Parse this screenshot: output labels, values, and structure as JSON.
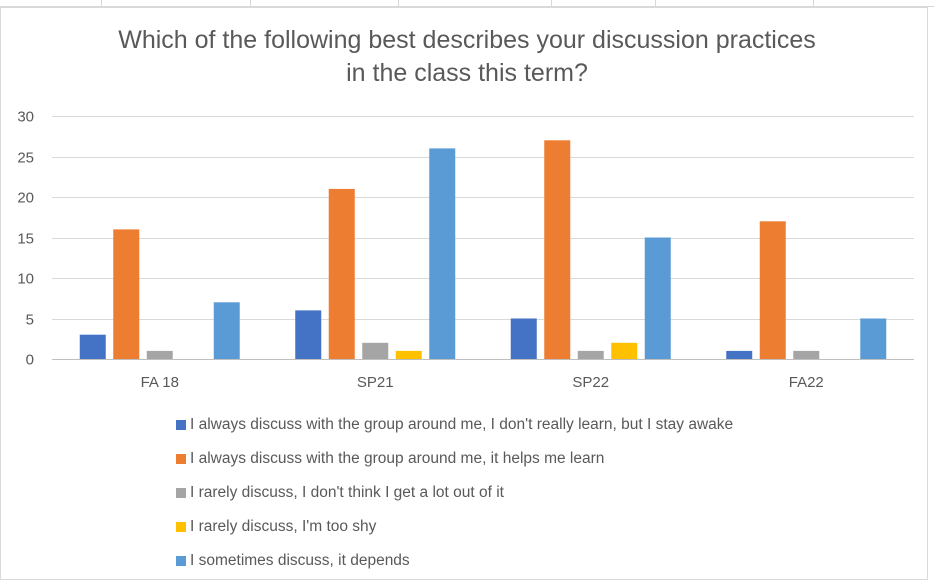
{
  "chart_data": {
    "type": "bar",
    "title_lines": [
      "Which of the following best describes your discussion practices",
      "in the class this term?"
    ],
    "categories": [
      "FA 18",
      "SP21",
      "SP22",
      "FA22"
    ],
    "ylim": [
      0,
      30
    ],
    "yticks": [
      0,
      5,
      10,
      15,
      20,
      25,
      30
    ],
    "grid": true,
    "legend_position": "bottom",
    "series": [
      {
        "name": "I always discuss with the group around me, I don't really learn, but I stay awake",
        "color": "#4472C4",
        "values": [
          3,
          6,
          5,
          1
        ]
      },
      {
        "name": "I always discuss with the group around me, it helps me learn",
        "color": "#ED7D31",
        "values": [
          16,
          21,
          27,
          17
        ]
      },
      {
        "name": "I rarely discuss, I don't think I get a lot out of it",
        "color": "#A5A5A5",
        "values": [
          1,
          2,
          1,
          1
        ]
      },
      {
        "name": "I rarely discuss, I'm too shy",
        "color": "#FFC000",
        "values": [
          0,
          1,
          2,
          0
        ]
      },
      {
        "name": "I sometimes discuss, it depends",
        "color": "#5B9BD5",
        "values": [
          7,
          26,
          15,
          5
        ]
      }
    ]
  }
}
